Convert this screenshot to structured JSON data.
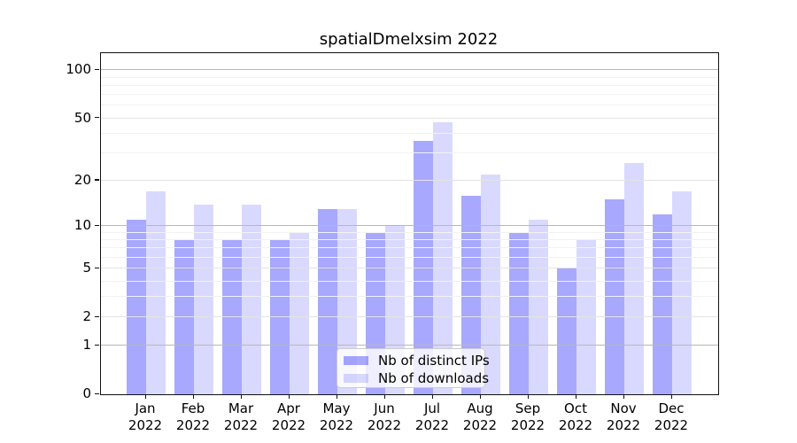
{
  "title": "spatialDmelxsim 2022",
  "colors": {
    "ips_bar_hex": "#a8a8f8",
    "downloads_bar_hex": "#d8d8fa",
    "ips_bar": "rgba(0,0,255,0.34)",
    "downloads_bar": "rgba(0,0,255,0.15)",
    "decade_grid": "#b8b8b8",
    "mid_grid": "#e3e3e3",
    "minor_grid": "#f2f2f2"
  },
  "legend": {
    "items": [
      {
        "label": "Nb of distinct IPs",
        "series": "ips"
      },
      {
        "label": "Nb of downloads",
        "series": "downloads"
      }
    ]
  },
  "chart_data": {
    "type": "bar",
    "title": "spatialDmelxsim 2022",
    "y_scale": "log1p",
    "categories": [
      "Jan",
      "Feb",
      "Mar",
      "Apr",
      "May",
      "Jun",
      "Jul",
      "Aug",
      "Sep",
      "Oct",
      "Nov",
      "Dec"
    ],
    "category_year": "2022",
    "series": [
      {
        "name": "Nb of distinct IPs",
        "color": "rgba(0,0,255,0.34)",
        "values": [
          11,
          8,
          8,
          8,
          13,
          9,
          36,
          16,
          9,
          5,
          15,
          12
        ]
      },
      {
        "name": "Nb of downloads",
        "color": "rgba(0,0,255,0.15)",
        "values": [
          17,
          14,
          14,
          9,
          13,
          10,
          47,
          22,
          11,
          8,
          26,
          17
        ]
      }
    ],
    "y_major_ticks": [
      0,
      1,
      2,
      5,
      10,
      20,
      50,
      100
    ],
    "y_mid_ticks": [
      2,
      5,
      20,
      50
    ],
    "y_decade_ticks": [
      1,
      10,
      100
    ],
    "y_minor_ticks": [
      3,
      4,
      6,
      7,
      8,
      9,
      30,
      40,
      60,
      70,
      80,
      90
    ],
    "ylim": [
      0,
      128
    ],
    "xlabel": "",
    "ylabel": "",
    "grid": "on",
    "legend_position": "lower center"
  }
}
